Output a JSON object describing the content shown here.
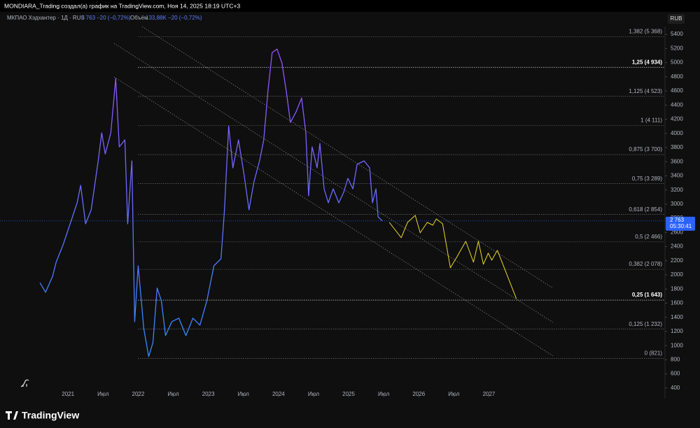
{
  "header": {
    "text": "MONDIARA_Trading создал(а) график на TradingView.com, Ноя 14, 2025 18:19 UTC+3"
  },
  "chart_data": {
    "type": "line",
    "legend": {
      "symbol": "МКПАО Хэдхантер · 1Д · RUS",
      "price": "2 763",
      "change": "−20 (−0,72%)",
      "volume_label": "Объём",
      "volume": "133,88K",
      "volume_change": "−20 (−0,72%)"
    },
    "currency": "RUB",
    "xlim": [
      2020.03,
      2029.51
    ],
    "ylim": [
      270,
      5510
    ],
    "xticks": [
      {
        "value": 2021,
        "label": "2021"
      },
      {
        "value": 2021.5,
        "label": "Июл"
      },
      {
        "value": 2022,
        "label": "2022"
      },
      {
        "value": 2022.5,
        "label": "Июл"
      },
      {
        "value": 2023,
        "label": "2023"
      },
      {
        "value": 2023.5,
        "label": "Июл"
      },
      {
        "value": 2024,
        "label": "2024"
      },
      {
        "value": 2024.5,
        "label": "Июл"
      },
      {
        "value": 2025,
        "label": "2025"
      },
      {
        "value": 2025.5,
        "label": "Июл"
      },
      {
        "value": 2026,
        "label": "2026"
      },
      {
        "value": 2026.5,
        "label": "Июл"
      },
      {
        "value": 2027,
        "label": "2027"
      }
    ],
    "yticks": [
      400,
      600,
      800,
      1000,
      1200,
      1400,
      1600,
      1800,
      2000,
      2200,
      2400,
      2600,
      2800,
      3000,
      3200,
      3400,
      3600,
      3800,
      4000,
      4200,
      4400,
      4600,
      4800,
      5000,
      5200,
      5400
    ],
    "series": [
      {
        "name": "МКПАО Хэдхантер · 1Д · RUS",
        "color": "#9c4dff",
        "color_bottom": "#2f8cff",
        "x": [
          2020.6,
          2020.68,
          2020.78,
          2020.83,
          2020.93,
          2021.03,
          2021.13,
          2021.18,
          2021.25,
          2021.33,
          2021.43,
          2021.48,
          2021.53,
          2021.61,
          2021.68,
          2021.73,
          2021.81,
          2021.85,
          2021.91,
          2021.95,
          2022.0,
          2022.08,
          2022.15,
          2022.21,
          2022.27,
          2022.33,
          2022.39,
          2022.48,
          2022.58,
          2022.68,
          2022.78,
          2022.88,
          2022.98,
          2023.08,
          2023.18,
          2023.23,
          2023.29,
          2023.35,
          2023.43,
          2023.51,
          2023.58,
          2023.65,
          2023.73,
          2023.79,
          2023.85,
          2023.91,
          2023.98,
          2024.05,
          2024.11,
          2024.17,
          2024.25,
          2024.33,
          2024.39,
          2024.43,
          2024.48,
          2024.55,
          2024.59,
          2024.65,
          2024.71,
          2024.78,
          2024.86,
          2024.93,
          2024.99,
          2025.06,
          2025.12,
          2025.22,
          2025.3,
          2025.34,
          2025.39,
          2025.42,
          2025.48
        ],
        "values": [
          1888,
          1754,
          1981,
          2178,
          2426,
          2722,
          3019,
          3266,
          2722,
          2920,
          3612,
          4007,
          3710,
          4007,
          4777,
          3809,
          3908,
          2722,
          3612,
          1339,
          2129,
          1240,
          845,
          1042,
          1813,
          1635,
          1141,
          1339,
          1388,
          1141,
          1388,
          1289,
          1635,
          2129,
          2228,
          2920,
          4106,
          3513,
          3908,
          3414,
          2920,
          3315,
          3612,
          3908,
          4600,
          5143,
          5192,
          4995,
          4600,
          4155,
          4303,
          4501,
          4007,
          3117,
          3809,
          3513,
          3859,
          3216,
          3019,
          3216,
          3019,
          3167,
          3365,
          3216,
          3562,
          3612,
          3513,
          3019,
          3216,
          2821,
          2763
        ]
      },
      {
        "color": "#e8d72c",
        "x": [
          2025.58,
          2025.75,
          2025.84,
          2025.95,
          2026.02,
          2026.12,
          2026.2,
          2026.25,
          2026.34,
          2026.45,
          2026.54,
          2026.67,
          2026.78,
          2026.85,
          2026.92,
          2026.99,
          2027.04,
          2027.12,
          2027.39
        ],
        "values": [
          2742,
          2525,
          2742,
          2841,
          2594,
          2742,
          2702,
          2791,
          2722,
          2100,
          2248,
          2475,
          2179,
          2475,
          2149,
          2307,
          2208,
          2347,
          1665
        ]
      }
    ],
    "last_price": {
      "value": 2763,
      "label": "2 763"
    },
    "countdown": "05:30:41",
    "fib_levels": [
      {
        "value": 5368,
        "label": "1,382 (5 368)"
      },
      {
        "value": 4934,
        "label": "1,25 (4 934)"
      },
      {
        "value": 4523,
        "label": "1,125 (4 523)"
      },
      {
        "value": 4111,
        "label": "1 (4 111)"
      },
      {
        "value": 3700,
        "label": "0,875 (3 700)"
      },
      {
        "value": 3289,
        "label": "0,75 (3 289)"
      },
      {
        "value": 2854,
        "label": "0,618 (2 854)"
      },
      {
        "value": 2466,
        "label": "0,5 (2 466)"
      },
      {
        "value": 2078,
        "label": "0,382 (2 078)"
      },
      {
        "value": 1643,
        "label": "0,25 (1 643)"
      },
      {
        "value": 1232,
        "label": "0,125 (1 232)"
      },
      {
        "value": 821,
        "label": "0 (821)"
      }
    ],
    "fib_bold": [
      1,
      9
    ]
  },
  "footer": {
    "brand": "TradingView"
  }
}
